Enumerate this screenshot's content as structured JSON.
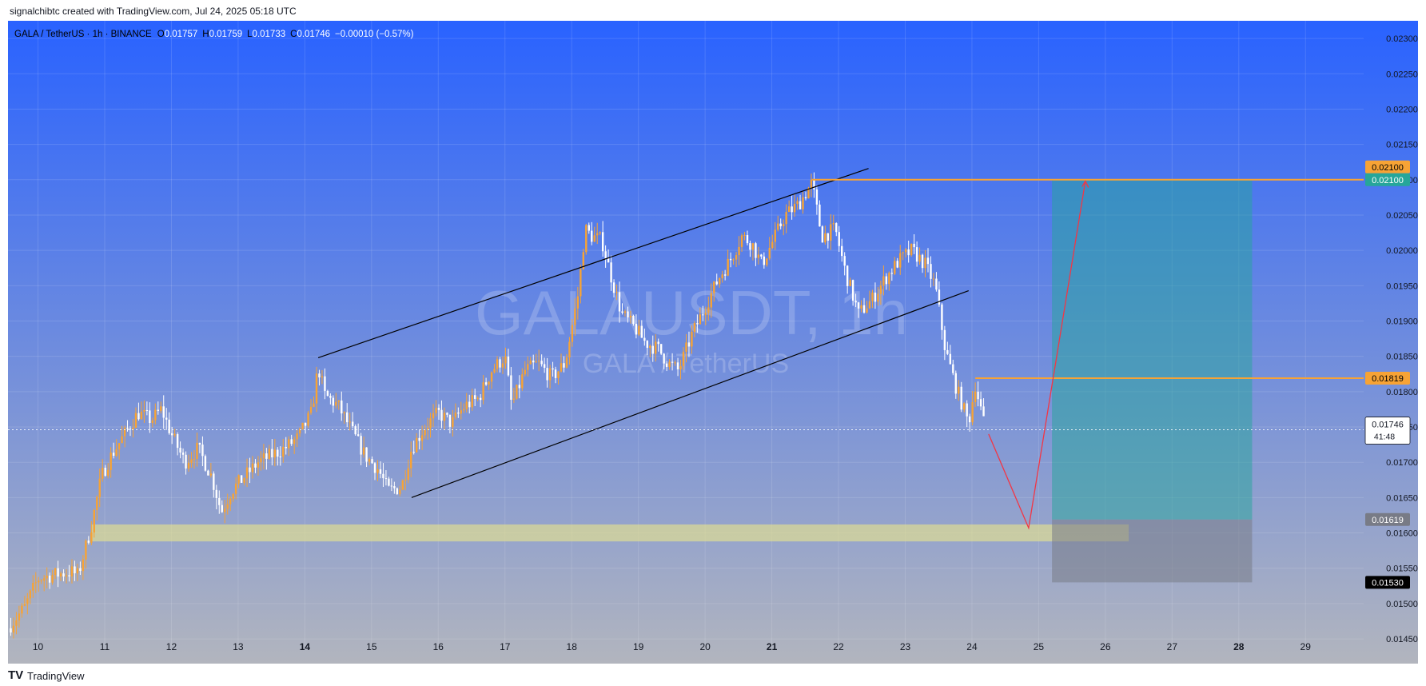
{
  "watermark": "signalchibtc created with TradingView.com, Jul 24, 2025 05:18 UTC",
  "brand": "TradingView",
  "brand_logo": "TV",
  "colors": {
    "bg_top": "#2962ff",
    "bg_bottom": "#b2b5be",
    "bull": "#f7a335",
    "bear": "#ffffff",
    "orange_line": "#f7a335",
    "target_label": "#26a69a",
    "stop_label": "#000000",
    "entry_label": "#787b86",
    "profit_zone": "#26a69a",
    "loss_zone": "#787b86",
    "support_zone": "#e3e08f",
    "path": "#f23645"
  },
  "chart_data": {
    "type": "candlestick",
    "symbol_line": {
      "pair": "GALA / TetherUS · 1h · BINANCE",
      "o_label": "O",
      "o": "0.01757",
      "h_label": "H",
      "h": "0.01759",
      "l_label": "L",
      "l": "0.01733",
      "c_label": "C",
      "c": "0.01746",
      "change": "−0.00010 (−0.57%)"
    },
    "background_text": {
      "main": "GALAUSDT, 1h",
      "sub": "GALA / TetherUS"
    },
    "ylim": [
      0.01415,
      0.02325
    ],
    "y_ticks": [
      "0.01450",
      "0.01500",
      "0.01550",
      "0.01600",
      "0.01650",
      "0.01700",
      "0.01750",
      "0.01800",
      "0.01850",
      "0.01900",
      "0.01950",
      "0.02000",
      "0.02050",
      "0.02100",
      "0.02150",
      "0.02200",
      "0.02250",
      "0.02300"
    ],
    "xlim": [
      9.55,
      29.8
    ],
    "x_ticks": [
      {
        "day": 10,
        "label": "10",
        "bold": false
      },
      {
        "day": 11,
        "label": "11",
        "bold": false
      },
      {
        "day": 12,
        "label": "12",
        "bold": false
      },
      {
        "day": 13,
        "label": "13",
        "bold": false
      },
      {
        "day": 14,
        "label": "14",
        "bold": true
      },
      {
        "day": 15,
        "label": "15",
        "bold": false
      },
      {
        "day": 16,
        "label": "16",
        "bold": false
      },
      {
        "day": 17,
        "label": "17",
        "bold": false
      },
      {
        "day": 18,
        "label": "18",
        "bold": false
      },
      {
        "day": 19,
        "label": "19",
        "bold": false
      },
      {
        "day": 20,
        "label": "20",
        "bold": false
      },
      {
        "day": 21,
        "label": "21",
        "bold": true
      },
      {
        "day": 22,
        "label": "22",
        "bold": false
      },
      {
        "day": 23,
        "label": "23",
        "bold": false
      },
      {
        "day": 24,
        "label": "24",
        "bold": false
      },
      {
        "day": 25,
        "label": "25",
        "bold": false
      },
      {
        "day": 26,
        "label": "26",
        "bold": false
      },
      {
        "day": 27,
        "label": "27",
        "bold": false
      },
      {
        "day": 28,
        "label": "28",
        "bold": true
      },
      {
        "day": 29,
        "label": "29",
        "bold": false
      }
    ],
    "grid": true,
    "price_path": [
      [
        9.55,
        0.01465
      ],
      [
        9.8,
        0.01495
      ],
      [
        10.0,
        0.01535
      ],
      [
        10.2,
        0.0154
      ],
      [
        10.5,
        0.01545
      ],
      [
        10.6,
        0.0154
      ],
      [
        10.8,
        0.0161
      ],
      [
        10.95,
        0.0168
      ],
      [
        11.1,
        0.0171
      ],
      [
        11.3,
        0.0174
      ],
      [
        11.5,
        0.0177
      ],
      [
        11.7,
        0.0176
      ],
      [
        11.85,
        0.01775
      ],
      [
        12.0,
        0.0174
      ],
      [
        12.2,
        0.017
      ],
      [
        12.4,
        0.0172
      ],
      [
        12.6,
        0.0168
      ],
      [
        12.75,
        0.0163
      ],
      [
        12.9,
        0.0166
      ],
      [
        13.1,
        0.0168
      ],
      [
        13.3,
        0.017
      ],
      [
        13.5,
        0.0171
      ],
      [
        13.7,
        0.0172
      ],
      [
        13.9,
        0.01735
      ],
      [
        14.1,
        0.0177
      ],
      [
        14.2,
        0.01835
      ],
      [
        14.3,
        0.01795
      ],
      [
        14.5,
        0.0178
      ],
      [
        14.7,
        0.01745
      ],
      [
        14.9,
        0.0171
      ],
      [
        15.1,
        0.0169
      ],
      [
        15.25,
        0.0166
      ],
      [
        15.45,
        0.01665
      ],
      [
        15.6,
        0.0172
      ],
      [
        15.8,
        0.0175
      ],
      [
        16.0,
        0.0177
      ],
      [
        16.2,
        0.01755
      ],
      [
        16.4,
        0.0178
      ],
      [
        16.6,
        0.0179
      ],
      [
        16.8,
        0.0183
      ],
      [
        17.0,
        0.0185
      ],
      [
        17.1,
        0.0178
      ],
      [
        17.3,
        0.0183
      ],
      [
        17.5,
        0.0184
      ],
      [
        17.7,
        0.0182
      ],
      [
        17.9,
        0.0184
      ],
      [
        18.1,
        0.0194
      ],
      [
        18.2,
        0.0203
      ],
      [
        18.3,
        0.0202
      ],
      [
        18.45,
        0.02015
      ],
      [
        18.6,
        0.0196
      ],
      [
        18.75,
        0.0191
      ],
      [
        18.95,
        0.0189
      ],
      [
        19.1,
        0.0187
      ],
      [
        19.3,
        0.0186
      ],
      [
        19.45,
        0.0184
      ],
      [
        19.6,
        0.0183
      ],
      [
        19.8,
        0.0188
      ],
      [
        20.0,
        0.0192
      ],
      [
        20.2,
        0.0196
      ],
      [
        20.4,
        0.0199
      ],
      [
        20.55,
        0.0202
      ],
      [
        20.7,
        0.0201
      ],
      [
        20.85,
        0.0198
      ],
      [
        21.0,
        0.0201
      ],
      [
        21.2,
        0.0205
      ],
      [
        21.4,
        0.02065
      ],
      [
        21.6,
        0.02095
      ],
      [
        21.75,
        0.0202
      ],
      [
        21.95,
        0.0203
      ],
      [
        22.1,
        0.0197
      ],
      [
        22.3,
        0.0191
      ],
      [
        22.5,
        0.0193
      ],
      [
        22.7,
        0.0196
      ],
      [
        22.9,
        0.01985
      ],
      [
        23.1,
        0.02
      ],
      [
        23.3,
        0.0198
      ],
      [
        23.45,
        0.0195
      ],
      [
        23.6,
        0.0186
      ],
      [
        23.75,
        0.0181
      ],
      [
        23.95,
        0.01755
      ],
      [
        24.05,
        0.0181
      ],
      [
        24.2,
        0.01746
      ]
    ],
    "last_price": "0.01746",
    "countdown": "41:48",
    "channel": {
      "upper": [
        [
          14.2,
          0.01848
        ],
        [
          22.45,
          0.02116
        ]
      ],
      "lower": [
        [
          15.6,
          0.0165
        ],
        [
          23.95,
          0.01943
        ]
      ]
    },
    "support_zone": {
      "x0": 10.8,
      "x1": 26.35,
      "y0": 0.01588,
      "y1": 0.01612
    },
    "target_level": {
      "price": 0.021,
      "x0": 21.6,
      "label_orange": "0.02100",
      "label_green": "0.02100"
    },
    "resistance_level": {
      "price": 0.01819,
      "x0": 24.05,
      "label": "0.01819"
    },
    "position": {
      "x0": 25.2,
      "x1": 28.2,
      "entry": 0.01619,
      "target": 0.021,
      "stop": 0.0153,
      "entry_label": "0.01619",
      "stop_label": "0.01530"
    },
    "projection": [
      [
        24.25,
        0.0174
      ],
      [
        24.85,
        0.01607
      ],
      [
        25.7,
        0.02098
      ]
    ]
  }
}
